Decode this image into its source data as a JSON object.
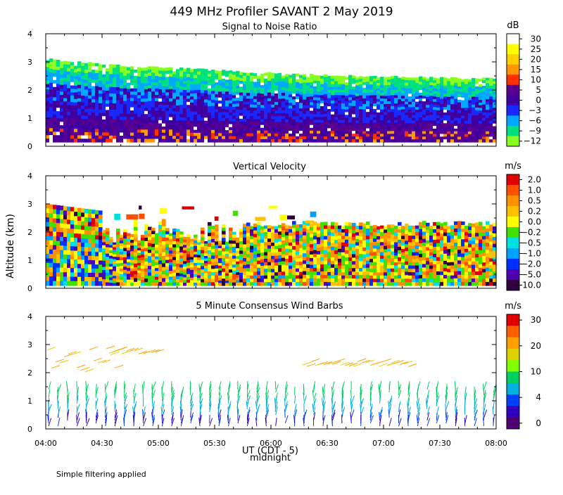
{
  "title": "449 MHz Profiler SAVANT  2 May 2019",
  "ylabel": "Altitude (km)",
  "xlabel": "UT   (CDT - 5)",
  "midnight_label": "midnight",
  "footer_note": "Simple filtering applied",
  "chart_data": [
    {
      "type": "heatmap",
      "title": "Signal to Noise Ratio",
      "unit": "dB",
      "xlim": [
        "04:00",
        "08:00"
      ],
      "ylim": [
        0,
        4
      ],
      "ytick_labels": [
        "0",
        "1",
        "2",
        "3",
        "4"
      ],
      "xtick_labels": [
        "04:00",
        "04:30",
        "05:00",
        "05:30",
        "06:00",
        "06:30",
        "07:00",
        "07:30",
        "08:00"
      ],
      "colorbar_labels": [
        "30",
        "25",
        "20",
        "15",
        "10",
        "5",
        "0",
        "−3",
        "−6",
        "−9",
        "−12"
      ],
      "colorbar_colors": [
        "#ffffff",
        "#ffff00",
        "#ffd000",
        "#ff9800",
        "#ff3000",
        "#5a0090",
        "#4000a0",
        "#1828ff",
        "#00a8ff",
        "#00e080",
        "#88ff20"
      ],
      "echo_top_km": [
        3.1,
        2.85,
        2.75,
        2.6,
        2.5,
        2.45,
        2.4
      ]
    },
    {
      "type": "heatmap",
      "title": "Vertical Velocity",
      "unit": "m/s",
      "xlim": [
        "04:00",
        "08:00"
      ],
      "ylim": [
        0,
        4
      ],
      "ytick_labels": [
        "0",
        "1",
        "2",
        "3",
        "4"
      ],
      "xtick_labels": [
        "04:00",
        "04:30",
        "05:00",
        "05:30",
        "06:00",
        "06:30",
        "07:00",
        "07:30",
        "08:00"
      ],
      "colorbar_labels": [
        "2.0",
        "1.0",
        "0.5",
        "0.2",
        "0.0",
        "−0.2",
        "−0.5",
        "−1.0",
        "−2.0",
        "−5.0",
        "−10.0"
      ],
      "colorbar_colors": [
        "#e00000",
        "#ff5000",
        "#ff9000",
        "#ffc000",
        "#ffff00",
        "#40e000",
        "#00e0e0",
        "#00a0ff",
        "#0030ff",
        "#5000b0",
        "#300040"
      ]
    },
    {
      "type": "scatter",
      "title": "5 Minute Consensus Wind Barbs",
      "unit": "m/s",
      "xlim": [
        "04:00",
        "08:00"
      ],
      "ylim": [
        0,
        4
      ],
      "ytick_labels": [
        "0",
        "1",
        "2",
        "3",
        "4"
      ],
      "xtick_labels": [
        "04:00",
        "04:30",
        "05:00",
        "05:30",
        "06:00",
        "06:30",
        "07:00",
        "07:30",
        "08:00"
      ],
      "colorbar_labels": [
        "30",
        "20",
        "10",
        "4",
        "0"
      ],
      "colorbar_colors": [
        "#e00000",
        "#ff6000",
        "#ffa000",
        "#e0d000",
        "#80ff00",
        "#00d060",
        "#00b0e0",
        "#0040ff",
        "#3000c0",
        "#500070"
      ]
    }
  ]
}
